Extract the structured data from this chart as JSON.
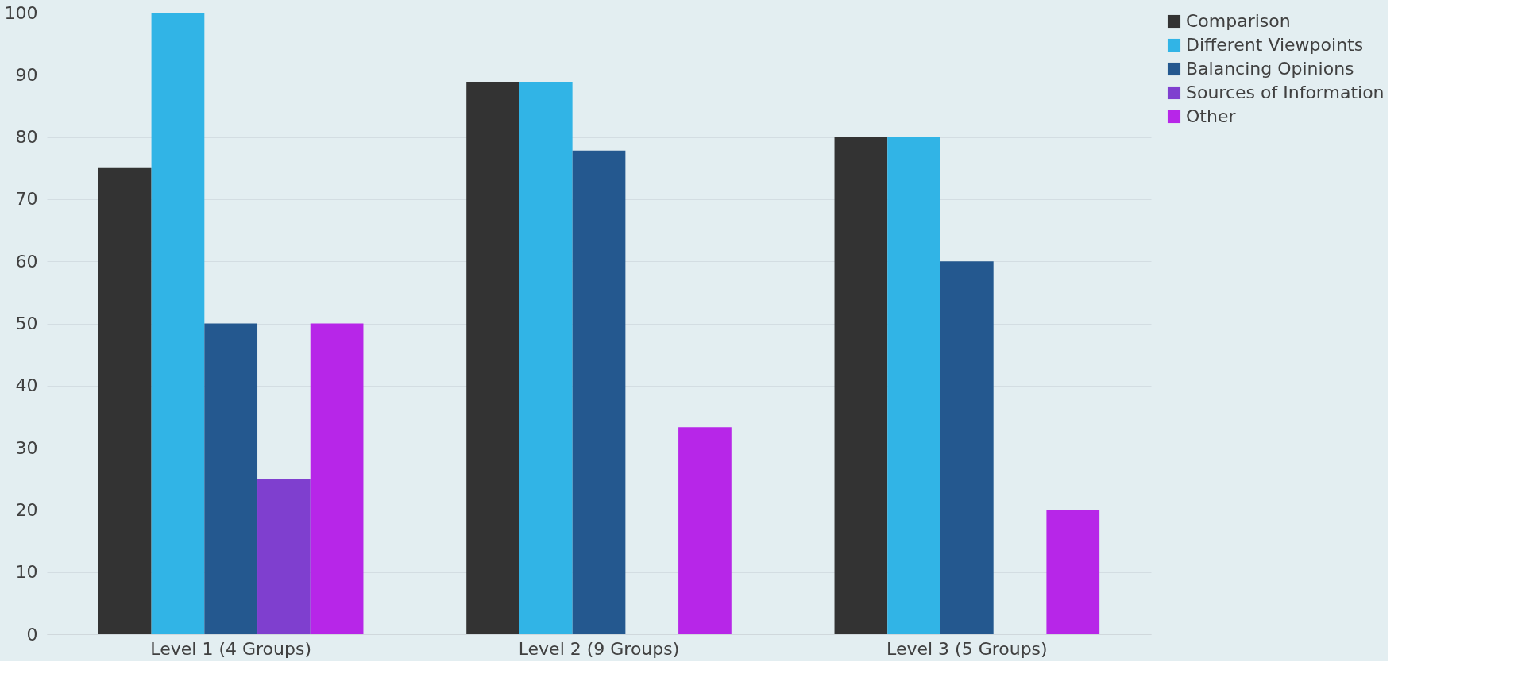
{
  "chart_data": {
    "type": "bar",
    "categories": [
      "Level 1 (4 Groups)",
      "Level 2 (9 Groups)",
      "Level 3 (5 Groups)"
    ],
    "series": [
      {
        "name": "Comparison",
        "color": "#333333",
        "values": [
          75,
          88.9,
          80
        ]
      },
      {
        "name": "Different Viewpoints",
        "color": "#31b4e6",
        "values": [
          100,
          88.9,
          80
        ]
      },
      {
        "name": "Balancing Opinions",
        "color": "#24588f",
        "values": [
          50,
          77.8,
          60
        ]
      },
      {
        "name": "Sources of Information",
        "color": "#7f3fcf",
        "values": [
          25,
          0,
          0
        ]
      },
      {
        "name": "Other",
        "color": "#b726e8",
        "values": [
          50,
          33.3,
          20
        ]
      }
    ],
    "ylim": [
      0,
      100
    ],
    "yticks": [
      0,
      10,
      20,
      30,
      40,
      50,
      60,
      70,
      80,
      90,
      100
    ],
    "grid": "y",
    "legend": "right"
  }
}
